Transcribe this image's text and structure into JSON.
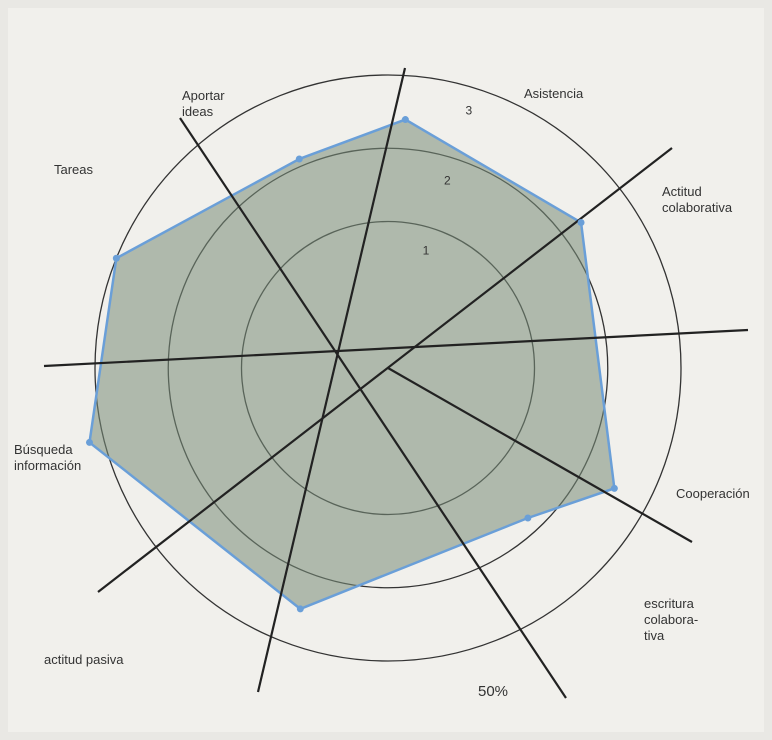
{
  "chart_data": {
    "type": "radar",
    "categories": [
      "Aportar ideas",
      "Asistencia",
      "Actitud colaborativa",
      "Cooperación",
      "escritura colabora- tiva",
      "actitud pasiva",
      "Búsqueda información",
      "Tareas"
    ],
    "values": [
      2.1,
      2.4,
      2.3,
      2.5,
      1.8,
      2.5,
      3.2,
      3.0
    ],
    "color": "#6a9fd8",
    "rlim": [
      -1,
      3
    ],
    "rticks": [
      1,
      2,
      3
    ],
    "annotation": "50%"
  }
}
